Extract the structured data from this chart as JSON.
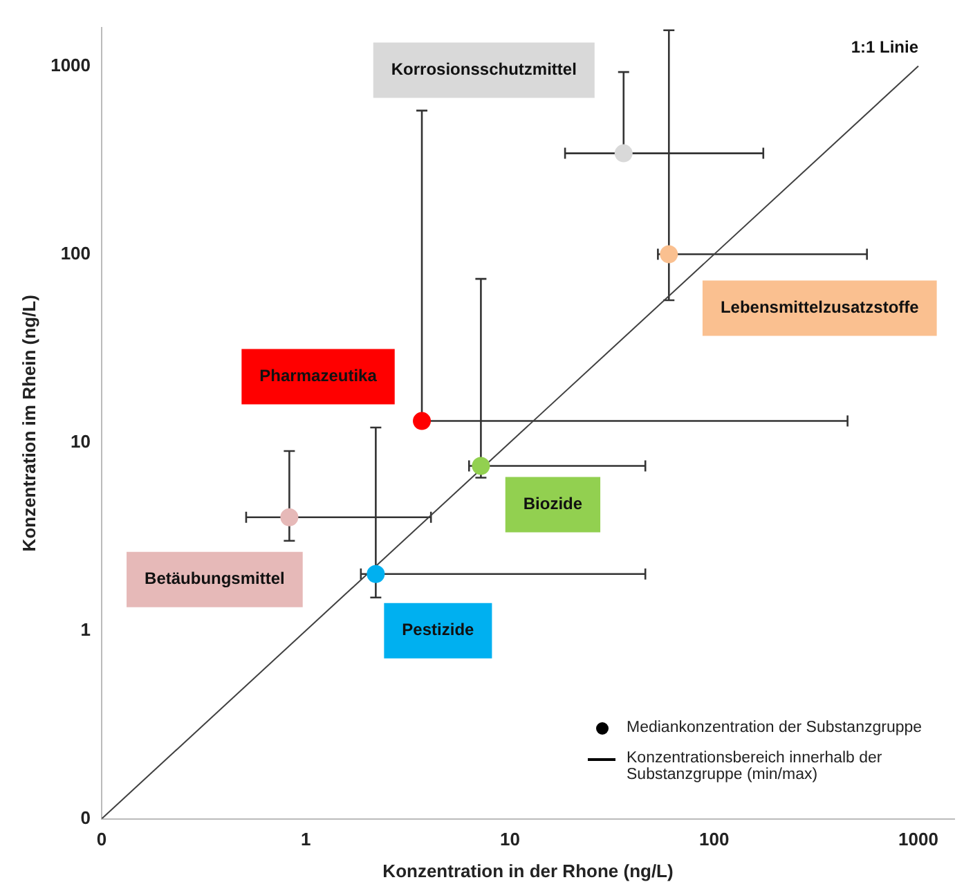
{
  "chart_data": {
    "type": "scatter",
    "xlabel": "Konzentration in der Rhone (ng/L)",
    "ylabel": "Konzentration im Rhein (ng/L)",
    "log": "xy",
    "xlim": [
      0.1,
      1500
    ],
    "ylim": [
      0.1,
      1600
    ],
    "xticks": [
      {
        "value": 0.1,
        "label": "0"
      },
      1,
      10,
      100,
      1000
    ],
    "yticks": [
      {
        "value": 0.1,
        "label": "0"
      },
      1,
      10,
      100,
      1000
    ],
    "grid": false,
    "legend": false,
    "marker": "circle",
    "series": [
      {
        "name": "Korrosionsschutzmittel",
        "color": "#d9d9d9",
        "x": [
          36
        ],
        "values": [
          344
        ],
        "xerrors": [
          [
            18.6,
            174
          ]
        ],
        "errors": [
          [
            344,
            930
          ]
        ]
      },
      {
        "name": "Lebensmittelzusatzstoffe",
        "color": "#fac090",
        "x": [
          60
        ],
        "values": [
          100
        ],
        "xerrors": [
          [
            53,
            560
          ]
        ],
        "errors": [
          [
            57,
            1550
          ]
        ]
      },
      {
        "name": "Pharmazeutika",
        "color": "#ff0000",
        "x": [
          3.7
        ],
        "values": [
          13
        ],
        "xerrors": [
          [
            3.7,
            450
          ]
        ],
        "errors": [
          [
            13,
            580
          ]
        ]
      },
      {
        "name": "Biozide",
        "color": "#92d050",
        "x": [
          7.2
        ],
        "values": [
          7.5
        ],
        "xerrors": [
          [
            6.3,
            46
          ]
        ],
        "errors": [
          [
            6.5,
            74
          ]
        ]
      },
      {
        "name": "Betäubungsmittel",
        "color": "#e6b9b8",
        "x": [
          0.83
        ],
        "values": [
          4
        ],
        "xerrors": [
          [
            0.51,
            4.1
          ]
        ],
        "errors": [
          [
            3,
            9
          ]
        ]
      },
      {
        "name": "Pestizide",
        "color": "#00b0f0",
        "x": [
          2.2
        ],
        "values": [
          2
        ],
        "xerrors": [
          [
            1.86,
            46
          ]
        ],
        "errors": [
          [
            1.5,
            12
          ]
        ]
      },
      {
        "name": "1:1 Linie",
        "type": "line",
        "color": "#404040",
        "marker": "none",
        "x": [
          0.1,
          1000
        ],
        "values": [
          0.1,
          1000
        ]
      }
    ],
    "annotations": [
      "Mediankonzentration der Substanzgruppe",
      "Konzentrationsbereich innerhalb der Substanzgruppe (min/max)"
    ]
  }
}
